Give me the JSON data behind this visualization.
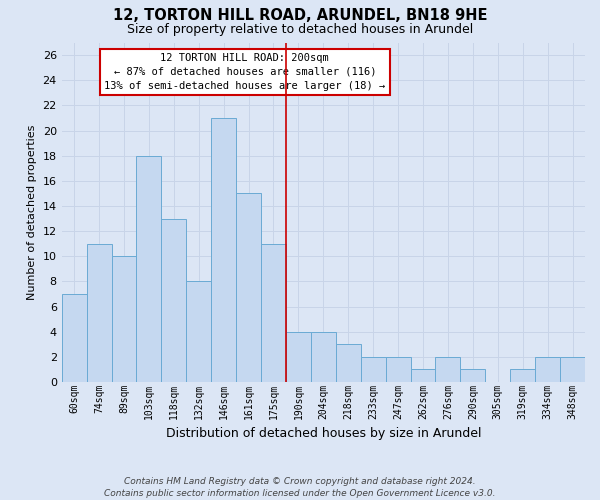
{
  "title": "12, TORTON HILL ROAD, ARUNDEL, BN18 9HE",
  "subtitle": "Size of property relative to detached houses in Arundel",
  "xlabel": "Distribution of detached houses by size in Arundel",
  "ylabel": "Number of detached properties",
  "bar_labels": [
    "60sqm",
    "74sqm",
    "89sqm",
    "103sqm",
    "118sqm",
    "132sqm",
    "146sqm",
    "161sqm",
    "175sqm",
    "190sqm",
    "204sqm",
    "218sqm",
    "233sqm",
    "247sqm",
    "262sqm",
    "276sqm",
    "290sqm",
    "305sqm",
    "319sqm",
    "334sqm",
    "348sqm"
  ],
  "bar_values": [
    7,
    11,
    10,
    18,
    13,
    8,
    21,
    15,
    11,
    4,
    4,
    3,
    2,
    2,
    1,
    2,
    1,
    0,
    1,
    2,
    2
  ],
  "bar_color": "#c5d8f0",
  "bar_edge_color": "#6aaad4",
  "vline_index": 9,
  "annotation_title": "12 TORTON HILL ROAD: 200sqm",
  "annotation_line1": "← 87% of detached houses are smaller (116)",
  "annotation_line2": "13% of semi-detached houses are larger (18) →",
  "annotation_box_color": "#ffffff",
  "annotation_box_edge": "#cc0000",
  "vline_color": "#cc0000",
  "ylim": [
    0,
    27
  ],
  "yticks": [
    0,
    2,
    4,
    6,
    8,
    10,
    12,
    14,
    16,
    18,
    20,
    22,
    24,
    26
  ],
  "grid_color": "#c8d4e8",
  "background_color": "#dce6f5",
  "fig_background": "#dce6f5",
  "footer_line1": "Contains HM Land Registry data © Crown copyright and database right 2024.",
  "footer_line2": "Contains public sector information licensed under the Open Government Licence v3.0."
}
